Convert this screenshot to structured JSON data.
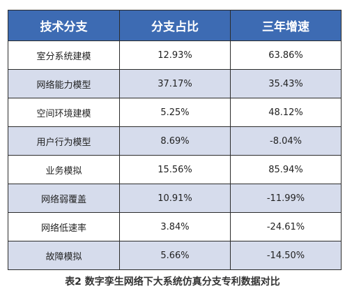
{
  "table": {
    "headers": [
      "技术分支",
      "分支占比",
      "三年增速"
    ],
    "rows": [
      {
        "branch": "室分系统建模",
        "share": "12.93%",
        "growth": "63.86%"
      },
      {
        "branch": "网络能力模型",
        "share": "37.17%",
        "growth": "35.43%"
      },
      {
        "branch": "空间环境建模",
        "share": "5.25%",
        "growth": "48.12%"
      },
      {
        "branch": "用户行为模型",
        "share": "8.69%",
        "growth": "-8.04%"
      },
      {
        "branch": "业务模拟",
        "share": "15.56%",
        "growth": "85.94%"
      },
      {
        "branch": "网络弱覆盖",
        "share": "10.91%",
        "growth": "-11.99%"
      },
      {
        "branch": "网络低速率",
        "share": "3.84%",
        "growth": "-24.61%"
      },
      {
        "branch": "故障模拟",
        "share": "5.66%",
        "growth": "-14.50%"
      }
    ]
  },
  "caption": "表2  数字孪生网络下大系统仿真分支专利数据对比",
  "colors": {
    "header_bg": "#3d6bb3",
    "header_text": "#ffffff",
    "alt_row_bg": "#d6dcec",
    "border": "#2b2b2b"
  }
}
